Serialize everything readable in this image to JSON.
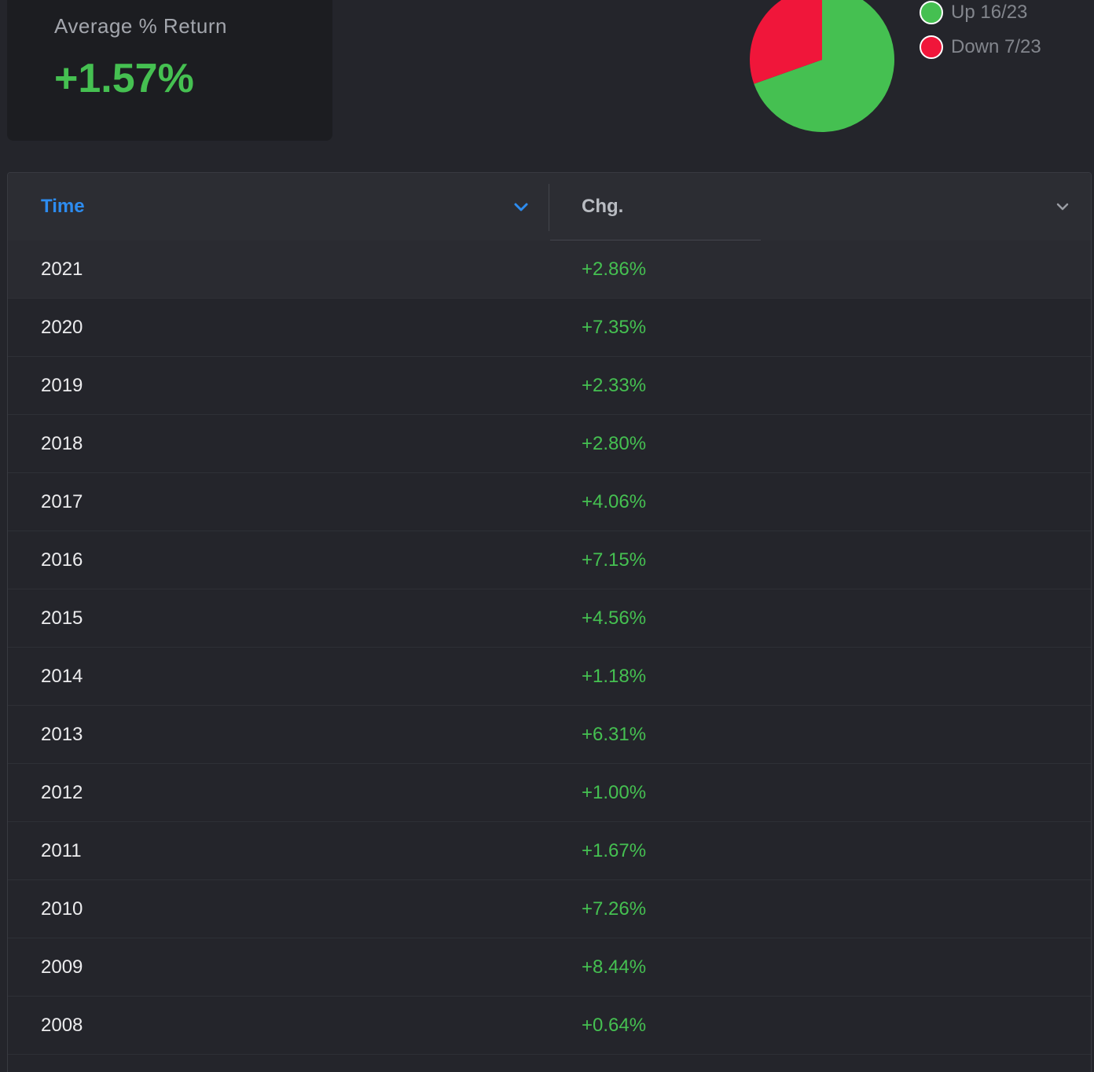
{
  "stat": {
    "label": "Average % Return",
    "value": "+1.57%"
  },
  "pie": {
    "up_count": 16,
    "down_count": 7,
    "total": 23,
    "up_color": "#45c051",
    "down_color": "#f0163a"
  },
  "legend": {
    "items": [
      {
        "label": "Up 16/23",
        "color": "#45c051"
      },
      {
        "label": "Down 7/23",
        "color": "#f0163a"
      }
    ]
  },
  "table": {
    "columns": {
      "time": "Time",
      "chg": "Chg."
    },
    "rows": [
      {
        "time": "2021",
        "chg": "+2.86%"
      },
      {
        "time": "2020",
        "chg": "+7.35%"
      },
      {
        "time": "2019",
        "chg": "+2.33%"
      },
      {
        "time": "2018",
        "chg": "+2.80%"
      },
      {
        "time": "2017",
        "chg": "+4.06%"
      },
      {
        "time": "2016",
        "chg": "+7.15%"
      },
      {
        "time": "2015",
        "chg": "+4.56%"
      },
      {
        "time": "2014",
        "chg": "+1.18%"
      },
      {
        "time": "2013",
        "chg": "+6.31%"
      },
      {
        "time": "2012",
        "chg": "+1.00%"
      },
      {
        "time": "2011",
        "chg": "+1.67%"
      },
      {
        "time": "2010",
        "chg": "+7.26%"
      },
      {
        "time": "2009",
        "chg": "+8.44%"
      },
      {
        "time": "2008",
        "chg": "+0.64%"
      },
      {
        "time": "",
        "chg": ""
      }
    ]
  }
}
